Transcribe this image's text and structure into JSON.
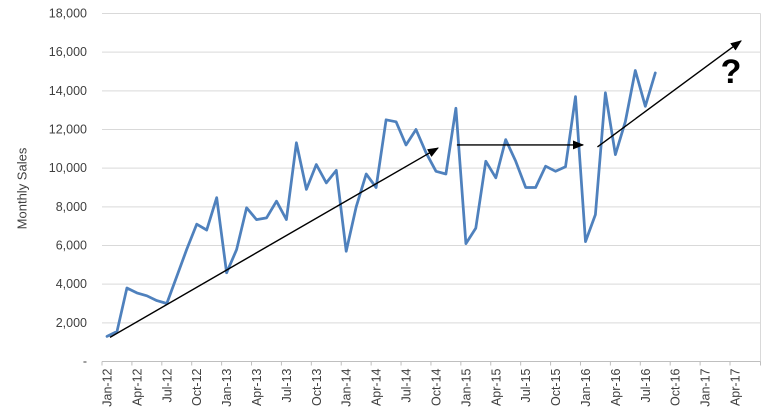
{
  "chart_data": {
    "type": "line",
    "title": "",
    "ylabel": "Monthly Sales",
    "xlabel": "",
    "x": [
      "Jan-12",
      "Feb-12",
      "Mar-12",
      "Apr-12",
      "May-12",
      "Jun-12",
      "Jul-12",
      "Aug-12",
      "Sep-12",
      "Oct-12",
      "Nov-12",
      "Dec-12",
      "Jan-13",
      "Feb-13",
      "Mar-13",
      "Apr-13",
      "May-13",
      "Jun-13",
      "Jul-13",
      "Aug-13",
      "Sep-13",
      "Oct-13",
      "Nov-13",
      "Dec-13",
      "Jan-14",
      "Feb-14",
      "Mar-14",
      "Apr-14",
      "May-14",
      "Jun-14",
      "Jul-14",
      "Aug-14",
      "Sep-14",
      "Oct-14",
      "Nov-14",
      "Dec-14",
      "Jan-15",
      "Feb-15",
      "Mar-15",
      "Apr-15",
      "May-15",
      "Jun-15",
      "Jul-15",
      "Aug-15",
      "Sep-15",
      "Oct-15",
      "Nov-15",
      "Dec-15",
      "Jan-16",
      "Feb-16",
      "Mar-16",
      "Apr-16",
      "May-16",
      "Jun-16",
      "Jul-16",
      "Aug-16"
    ],
    "values": [
      1300,
      1550,
      3800,
      3550,
      3400,
      3150,
      3000,
      4400,
      5800,
      7100,
      6800,
      8470,
      4590,
      5790,
      7950,
      7340,
      7430,
      8290,
      7340,
      11310,
      8900,
      10190,
      9240,
      9890,
      5700,
      8000,
      9700,
      9000,
      12500,
      12400,
      11200,
      12000,
      10800,
      9840,
      9700,
      13100,
      6100,
      6900,
      10360,
      9500,
      11480,
      10360,
      9000,
      9000,
      10100,
      9840,
      10070,
      13700,
      6200,
      7600,
      13900,
      10700,
      12400,
      15050,
      13200,
      14930
    ],
    "x_tick_labels": [
      "Jan-12",
      "Apr-12",
      "Jul-12",
      "Oct-12",
      "Jan-13",
      "Apr-13",
      "Jul-13",
      "Oct-13",
      "Jan-14",
      "Apr-14",
      "Jul-14",
      "Oct-14",
      "Jan-15",
      "Apr-15",
      "Jul-15",
      "Oct-15",
      "Jan-16",
      "Apr-16",
      "Jul-16",
      "Oct-16",
      "Jan-17",
      "Apr-17"
    ],
    "ytick_labels": [
      "-",
      "2,000",
      "4,000",
      "6,000",
      "8,000",
      "10,000",
      "12,000",
      "14,000",
      "16,000",
      "18,000"
    ],
    "ylim": [
      0,
      18000
    ],
    "ytick_step": 2000,
    "grid": "horizontal",
    "legend": "none",
    "annotations": {
      "arrows": [
        {
          "name": "trend-arrow-rising-1",
          "from": {
            "month_index": 0.3,
            "value": 1250
          },
          "to": {
            "month_index": 33.2,
            "value": 11040
          }
        },
        {
          "name": "trend-arrow-flat",
          "from": {
            "month_index": 35.1,
            "value": 11200
          },
          "to": {
            "month_index": 47.75,
            "value": 11200
          }
        },
        {
          "name": "trend-arrow-rising-2",
          "from": {
            "month_index": 49.2,
            "value": 11100
          },
          "to": {
            "month_index": 63.6,
            "value": 16580
          }
        }
      ],
      "question_mark": {
        "text": "?",
        "month_index": 62.6,
        "value": 14970
      }
    }
  },
  "colors": {
    "series": "#4F81BD",
    "gridline": "#D9D9D9",
    "axis": "#BFBFBF",
    "text": "#3F3F3F",
    "annotation": "#000000",
    "background": "#FFFFFF"
  }
}
